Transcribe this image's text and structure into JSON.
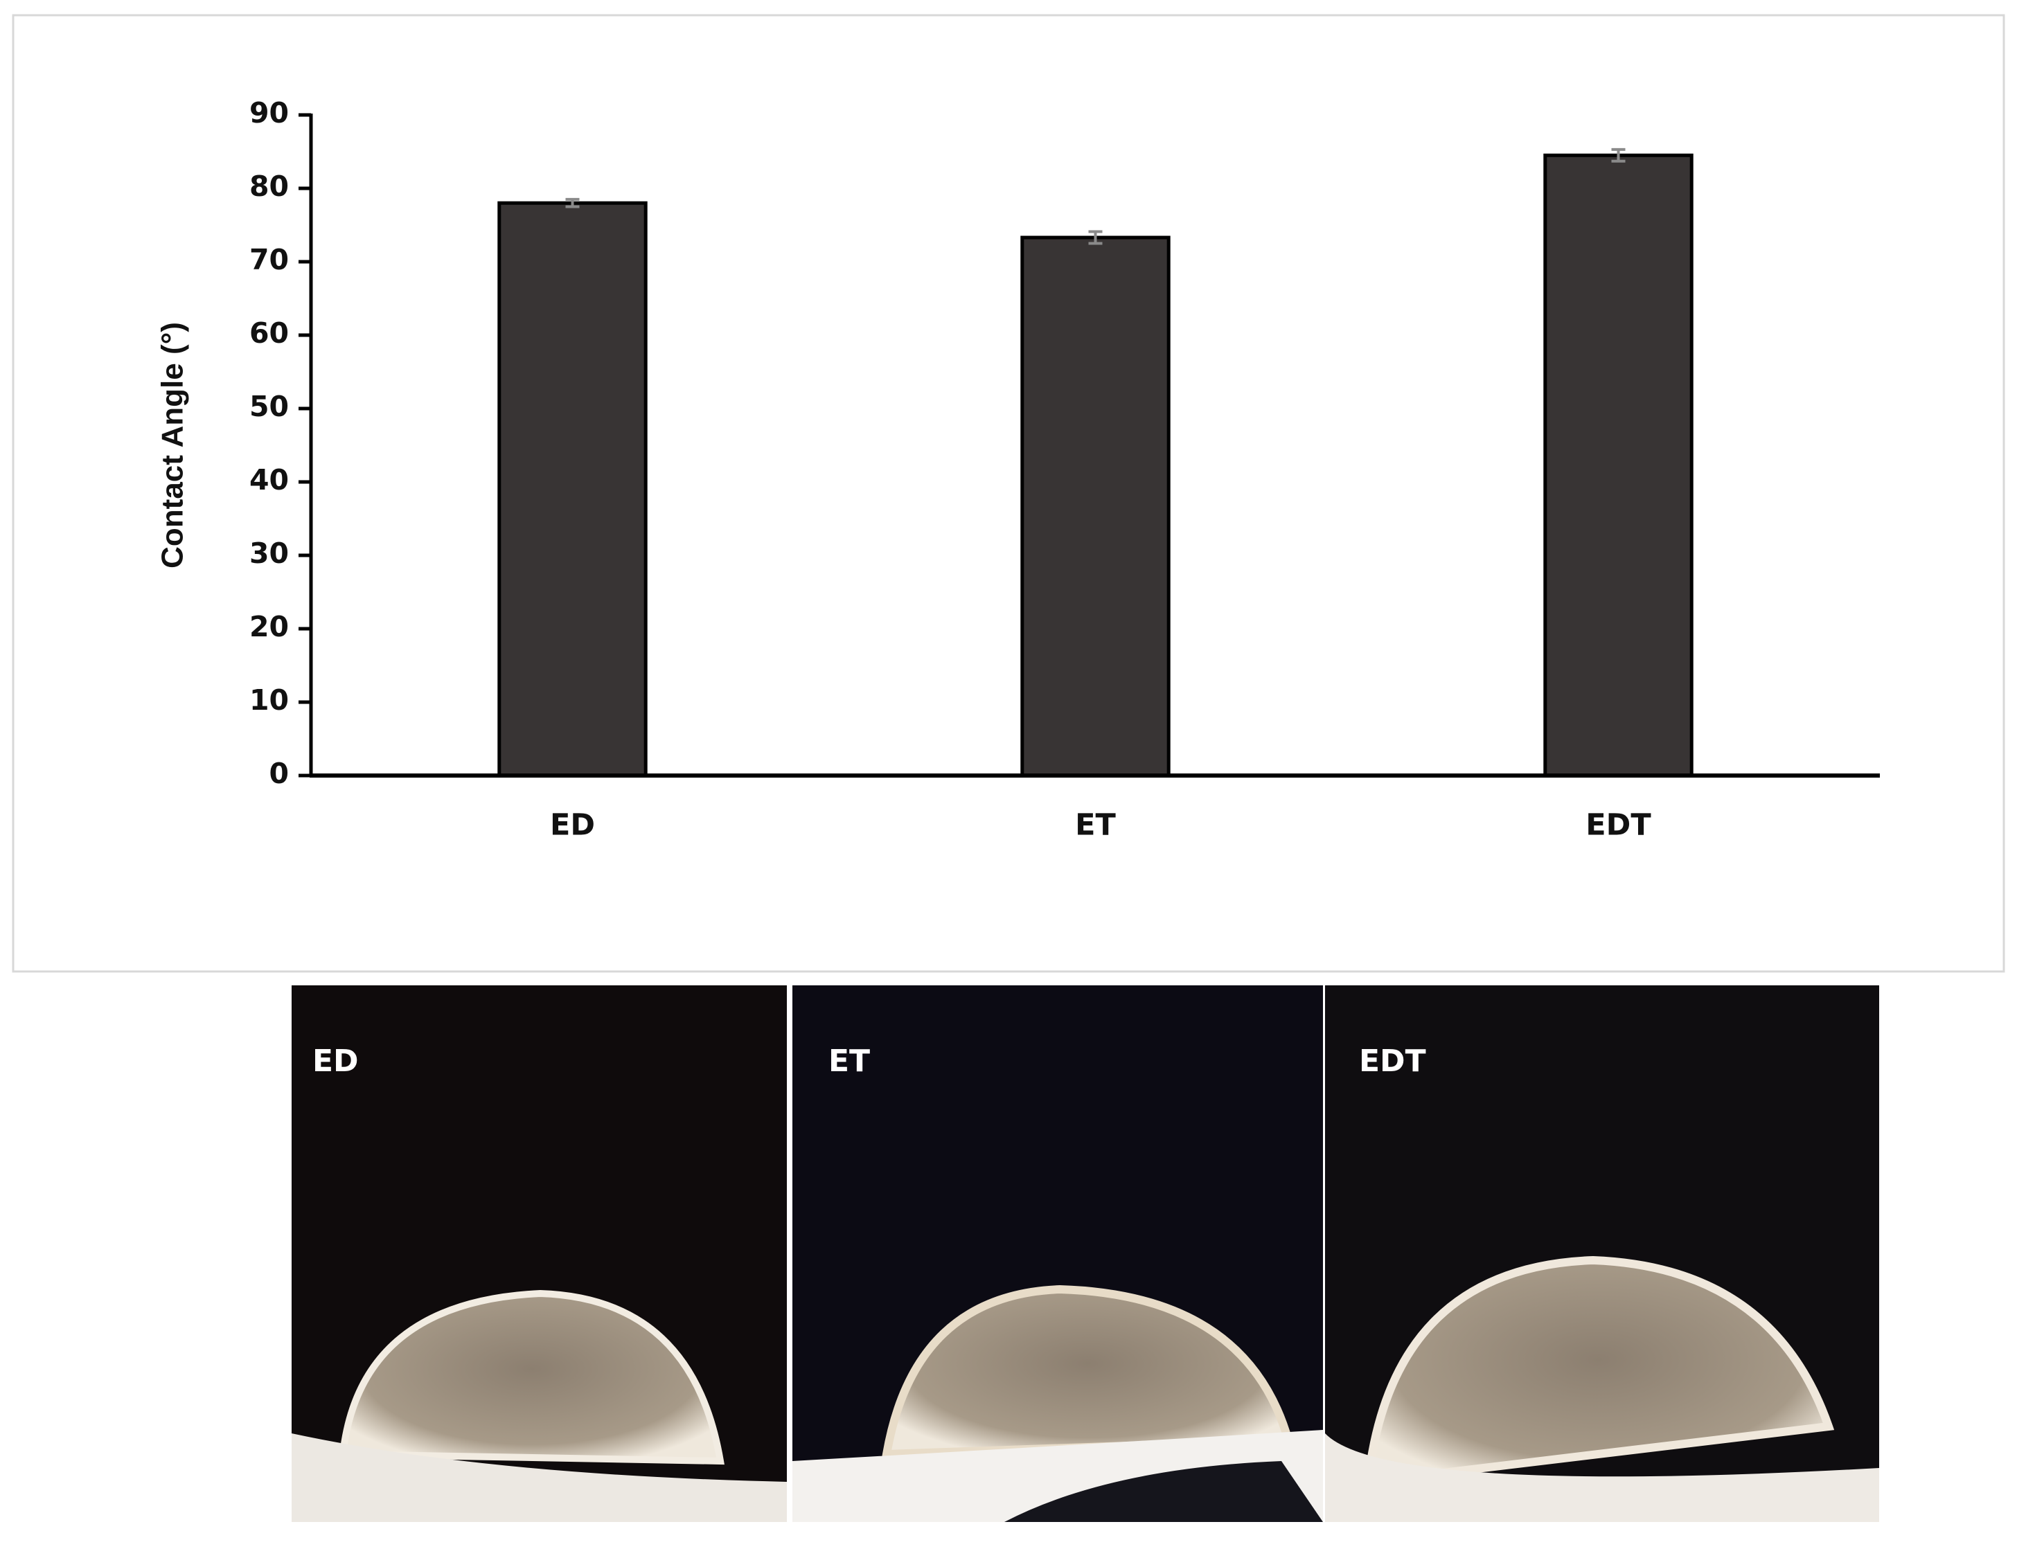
{
  "chart_data": {
    "type": "bar",
    "ylabel": "Contact Angle (°)",
    "categories": [
      "ED",
      "ET",
      "EDT"
    ],
    "values": [
      78,
      73.3,
      84.5
    ],
    "errors": [
      0.5,
      0.8,
      0.8
    ],
    "color": "#383434",
    "error_color": "#8a8a8a",
    "ylim": [
      0,
      90
    ],
    "yticks": [
      0,
      10,
      20,
      30,
      40,
      50,
      60,
      70,
      80,
      90
    ],
    "grid": false
  },
  "photos": {
    "labels": [
      "ED",
      "ET",
      "EDT"
    ]
  }
}
